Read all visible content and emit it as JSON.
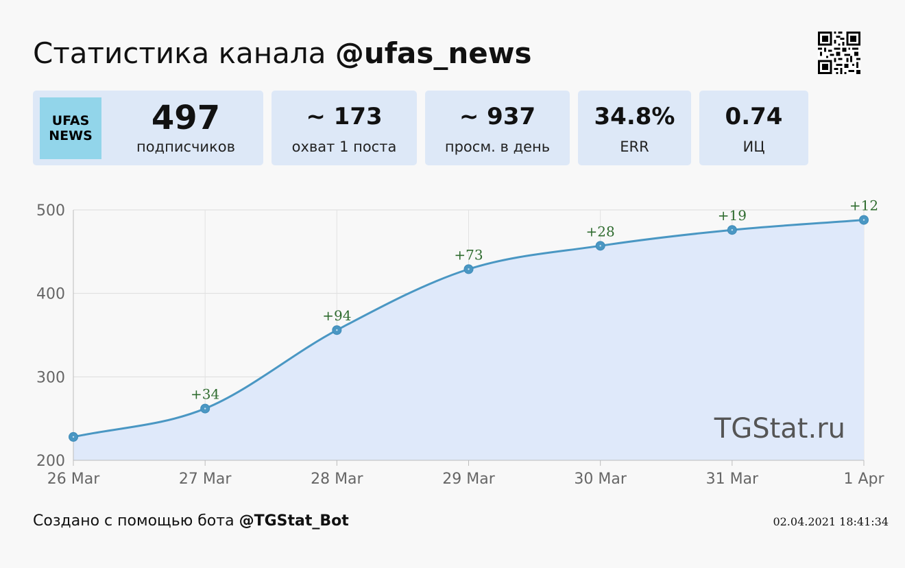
{
  "header": {
    "title_prefix": "Статистика канала ",
    "channel": "@ufas_news"
  },
  "logo": {
    "text": "UFAS\nNEWS",
    "color": "#92d5ea"
  },
  "stats": [
    {
      "value": "497",
      "label": "подписчиков"
    },
    {
      "value": "~ 173",
      "label": "охват 1 поста"
    },
    {
      "value": "~ 937",
      "label": "просм. в день"
    },
    {
      "value": "34.8%",
      "label": "ERR"
    },
    {
      "value": "0.74",
      "label": "ИЦ"
    }
  ],
  "chart_data": {
    "type": "area",
    "categories": [
      "26 Mar",
      "27 Mar",
      "28 Mar",
      "29 Mar",
      "30 Mar",
      "31 Mar",
      "1 Apr"
    ],
    "values": [
      228,
      262,
      356,
      429,
      457,
      476,
      488
    ],
    "deltas": [
      "",
      "+34",
      "+94",
      "+73",
      "+28",
      "+19",
      "+12"
    ],
    "ylim": [
      200,
      500
    ],
    "yticks": [
      200,
      300,
      400,
      500
    ],
    "grid": true,
    "line_color": "#4a97c3",
    "fill_color": "#dfe9fa",
    "delta_color": "#2e6b2e",
    "watermark": "TGStat.ru"
  },
  "footer": {
    "prefix": "Создано с помощью бота ",
    "bot": "@TGStat_Bot",
    "timestamp": "02.04.2021 18:41:34"
  }
}
